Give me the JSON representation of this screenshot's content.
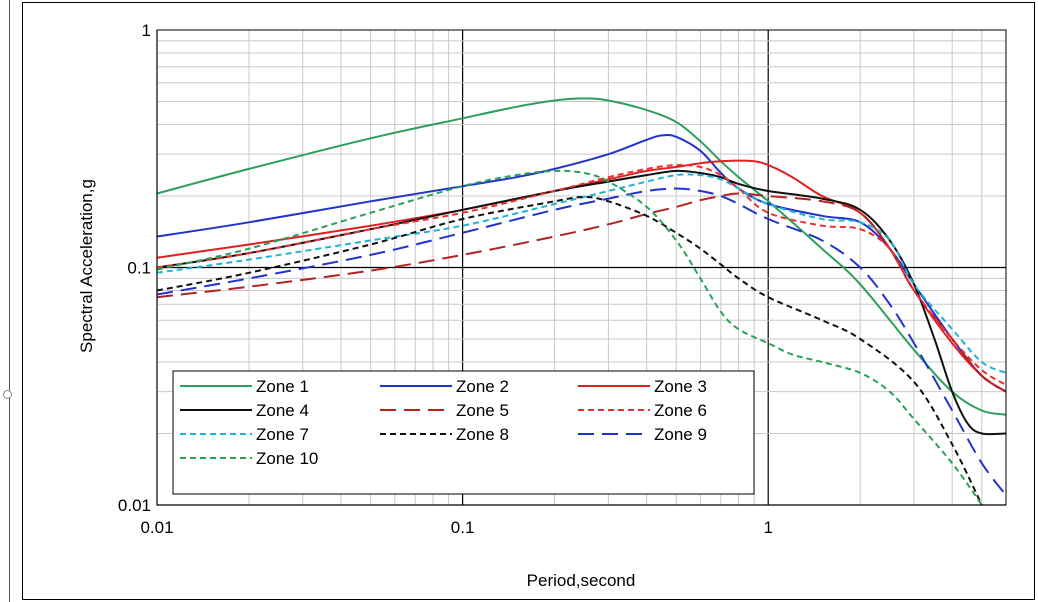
{
  "chart_data": {
    "type": "line",
    "xlabel": "Period,second",
    "ylabel": "Spectral Acceleration,g",
    "xscale": "log",
    "yscale": "log",
    "xlim": [
      0.01,
      6
    ],
    "ylim": [
      0.01,
      1
    ],
    "x_tick_labels": [
      "0.01",
      "0.1",
      "1"
    ],
    "y_tick_labels": [
      "0.01",
      "0.1",
      "1"
    ],
    "grid": true,
    "legend_position": "bottom-left",
    "series": [
      {
        "name": "Zone 1",
        "color": "#2ca05a",
        "dash": "solid",
        "x": [
          0.01,
          0.02,
          0.05,
          0.1,
          0.15,
          0.2,
          0.25,
          0.3,
          0.4,
          0.5,
          0.6,
          0.7,
          0.8,
          1,
          1.5,
          2,
          3,
          4,
          5,
          6
        ],
        "y": [
          0.205,
          0.26,
          0.35,
          0.425,
          0.475,
          0.505,
          0.515,
          0.505,
          0.46,
          0.41,
          0.34,
          0.28,
          0.24,
          0.19,
          0.12,
          0.085,
          0.045,
          0.03,
          0.025,
          0.024
        ]
      },
      {
        "name": "Zone 2",
        "color": "#2233cc",
        "dash": "solid",
        "x": [
          0.01,
          0.02,
          0.05,
          0.1,
          0.15,
          0.2,
          0.3,
          0.4,
          0.45,
          0.5,
          0.6,
          0.7,
          0.8,
          1,
          1.5,
          2,
          2.5,
          3,
          4,
          5,
          6
        ],
        "y": [
          0.135,
          0.155,
          0.19,
          0.22,
          0.24,
          0.26,
          0.3,
          0.345,
          0.36,
          0.355,
          0.31,
          0.25,
          0.215,
          0.185,
          0.165,
          0.155,
          0.12,
          0.085,
          0.05,
          0.035,
          0.03
        ]
      },
      {
        "name": "Zone 3",
        "color": "#e02020",
        "dash": "solid",
        "x": [
          0.01,
          0.02,
          0.05,
          0.1,
          0.2,
          0.3,
          0.4,
          0.5,
          0.6,
          0.7,
          0.8,
          0.9,
          1,
          1.2,
          1.5,
          2,
          2.5,
          3,
          4,
          5,
          6
        ],
        "y": [
          0.11,
          0.125,
          0.15,
          0.175,
          0.21,
          0.235,
          0.255,
          0.265,
          0.275,
          0.28,
          0.282,
          0.28,
          0.27,
          0.24,
          0.2,
          0.17,
          0.12,
          0.08,
          0.048,
          0.035,
          0.03
        ]
      },
      {
        "name": "Zone 4",
        "color": "#111111",
        "dash": "solid",
        "x": [
          0.01,
          0.02,
          0.05,
          0.1,
          0.2,
          0.3,
          0.4,
          0.5,
          0.6,
          0.7,
          0.8,
          1,
          1.5,
          2,
          2.5,
          3,
          3.5,
          4,
          4.5,
          5,
          6
        ],
        "y": [
          0.1,
          0.115,
          0.145,
          0.175,
          0.21,
          0.23,
          0.245,
          0.255,
          0.25,
          0.24,
          0.225,
          0.21,
          0.195,
          0.175,
          0.13,
          0.085,
          0.05,
          0.03,
          0.022,
          0.02,
          0.02
        ]
      },
      {
        "name": "Zone 5",
        "color": "#b22222",
        "dash": "longdash",
        "x": [
          0.01,
          0.02,
          0.05,
          0.1,
          0.2,
          0.3,
          0.4,
          0.5,
          0.6,
          0.7,
          0.8,
          1,
          1.5,
          2,
          2.5,
          3,
          4,
          5,
          6
        ],
        "y": [
          0.075,
          0.083,
          0.097,
          0.113,
          0.135,
          0.152,
          0.168,
          0.18,
          0.192,
          0.2,
          0.205,
          0.2,
          0.19,
          0.17,
          0.12,
          0.08,
          0.05,
          0.035,
          0.03
        ]
      },
      {
        "name": "Zone 6",
        "color": "#e83030",
        "dash": "shortdash",
        "x": [
          0.01,
          0.02,
          0.05,
          0.1,
          0.2,
          0.3,
          0.4,
          0.5,
          0.6,
          0.7,
          0.8,
          1,
          1.5,
          2,
          2.5,
          3,
          4,
          5,
          6
        ],
        "y": [
          0.1,
          0.115,
          0.145,
          0.17,
          0.21,
          0.24,
          0.26,
          0.27,
          0.265,
          0.245,
          0.215,
          0.17,
          0.15,
          0.145,
          0.12,
          0.08,
          0.05,
          0.037,
          0.032
        ]
      },
      {
        "name": "Zone 7",
        "color": "#1fb4d6",
        "dash": "shortdash",
        "x": [
          0.01,
          0.02,
          0.05,
          0.1,
          0.2,
          0.3,
          0.4,
          0.5,
          0.6,
          0.7,
          0.8,
          1,
          1.5,
          2,
          2.5,
          3,
          4,
          5,
          6
        ],
        "y": [
          0.095,
          0.108,
          0.13,
          0.15,
          0.185,
          0.21,
          0.23,
          0.245,
          0.245,
          0.235,
          0.215,
          0.185,
          0.16,
          0.155,
          0.13,
          0.085,
          0.055,
          0.04,
          0.036
        ]
      },
      {
        "name": "Zone 8",
        "color": "#111111",
        "dash": "shortdash",
        "x": [
          0.01,
          0.02,
          0.05,
          0.1,
          0.2,
          0.25,
          0.3,
          0.4,
          0.5,
          0.6,
          0.7,
          0.8,
          1,
          1.5,
          2,
          3,
          4,
          5
        ],
        "y": [
          0.08,
          0.095,
          0.125,
          0.16,
          0.19,
          0.198,
          0.19,
          0.165,
          0.14,
          0.12,
          0.103,
          0.09,
          0.075,
          0.06,
          0.05,
          0.033,
          0.018,
          0.01
        ]
      },
      {
        "name": "Zone 9",
        "color": "#2233cc",
        "dash": "longdash",
        "x": [
          0.01,
          0.02,
          0.05,
          0.1,
          0.2,
          0.3,
          0.4,
          0.5,
          0.6,
          0.7,
          0.8,
          1,
          1.5,
          2,
          2.5,
          3,
          4,
          5,
          6
        ],
        "y": [
          0.077,
          0.09,
          0.113,
          0.14,
          0.175,
          0.195,
          0.21,
          0.215,
          0.21,
          0.2,
          0.185,
          0.16,
          0.13,
          0.1,
          0.07,
          0.048,
          0.025,
          0.015,
          0.011
        ]
      },
      {
        "name": "Zone 10",
        "color": "#2ca05a",
        "dash": "shortdash",
        "x": [
          0.01,
          0.02,
          0.05,
          0.1,
          0.15,
          0.2,
          0.25,
          0.3,
          0.4,
          0.5,
          0.6,
          0.7,
          0.8,
          1,
          1.2,
          1.5,
          2,
          2.5,
          3,
          4,
          5
        ],
        "y": [
          0.098,
          0.12,
          0.17,
          0.22,
          0.245,
          0.255,
          0.25,
          0.23,
          0.18,
          0.13,
          0.09,
          0.065,
          0.055,
          0.048,
          0.043,
          0.04,
          0.036,
          0.03,
          0.023,
          0.015,
          0.01
        ]
      }
    ]
  }
}
